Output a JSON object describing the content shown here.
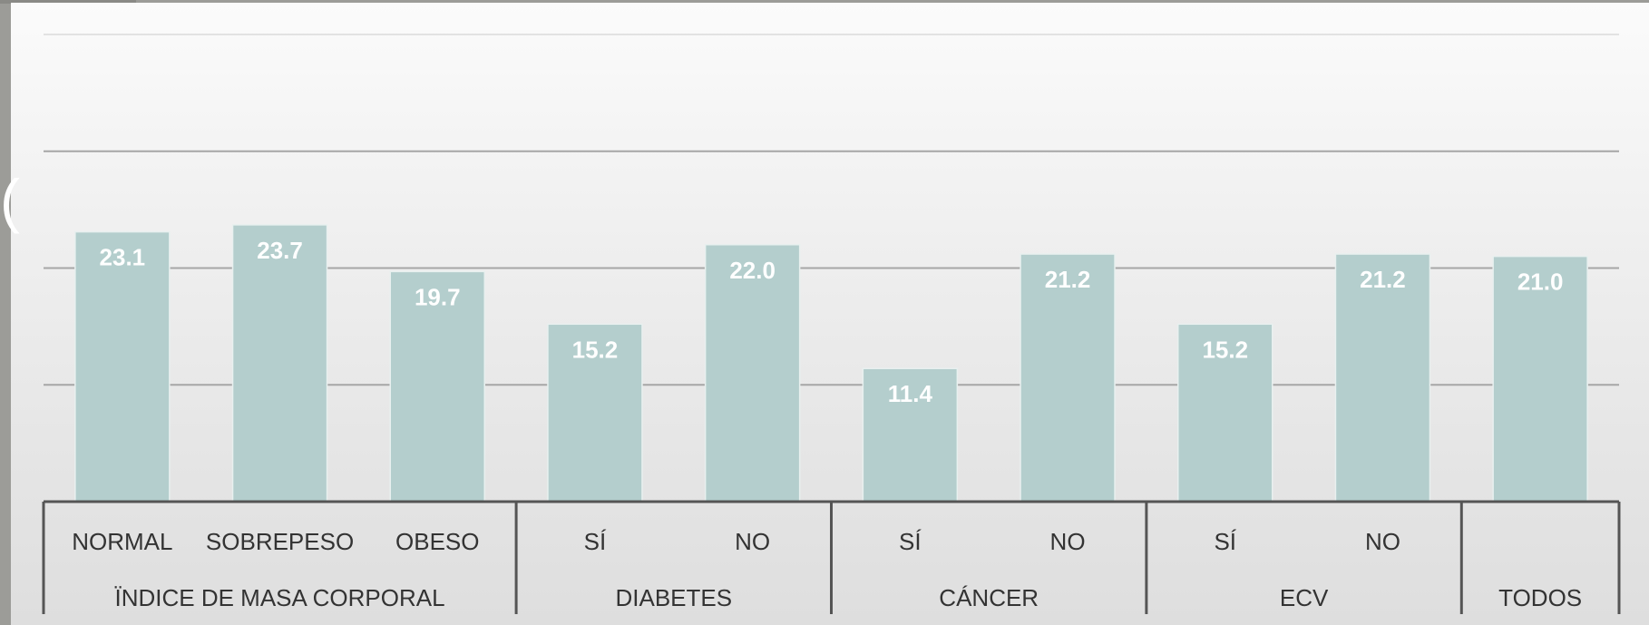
{
  "colors": {
    "bar_fill": "#b4cecd",
    "bar_stroke": "#e8f0ef",
    "data_label": "#ffffff",
    "axis_text": "#333333",
    "gridline": "#a6a6a6",
    "axis_line": "#555555"
  },
  "chart_data": {
    "type": "bar",
    "title": "",
    "ylim": [
      0,
      40
    ],
    "yticks": [
      0,
      10,
      20,
      30,
      40
    ],
    "grid": true,
    "legend": "none",
    "categories": [
      "NORMAL",
      "SOBREPESO",
      "OBESO",
      "SÍ",
      "NO",
      "SÍ",
      "NO",
      "SÍ",
      "NO",
      ""
    ],
    "groups": [
      {
        "label": "ÏNDICE DE MASA CORPORAL",
        "count": 3
      },
      {
        "label": "DIABETES",
        "count": 2
      },
      {
        "label": "CÁNCER",
        "count": 2
      },
      {
        "label": "ECV",
        "count": 2
      },
      {
        "label": "TODOS",
        "count": 1
      }
    ],
    "series": [
      {
        "values": [
          23.1,
          23.7,
          19.7,
          15.2,
          22.0,
          11.4,
          21.2,
          15.2,
          21.2,
          21.0
        ],
        "labels": [
          "23.1",
          "23.7",
          "19.7",
          "15.2",
          "22.0",
          "11.4",
          "21.2",
          "15.2",
          "21.2",
          "21.0"
        ]
      }
    ]
  },
  "stray_text": "("
}
